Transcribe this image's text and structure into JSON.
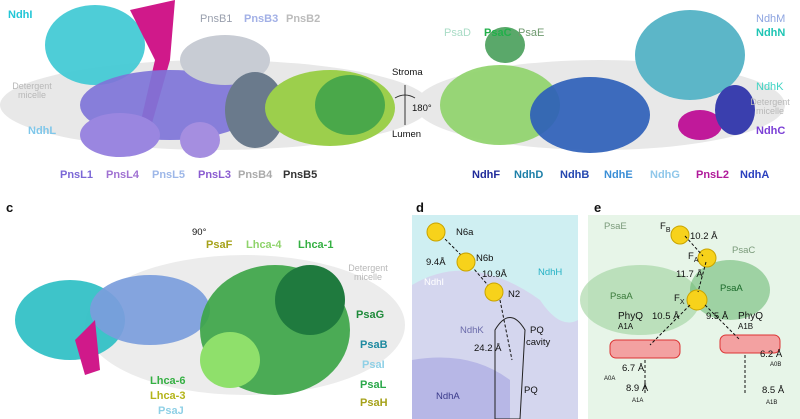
{
  "panel_top": {
    "labels_left": {
      "ndhi": "NdhI",
      "pnsb1": "PnsB1",
      "pnsb3": "PnsB3",
      "pnsb2": "PnsB2",
      "ndhl": "NdhL",
      "micelle": "Detergent micelle",
      "pnsl1": "PnsL1",
      "pnsl4": "PnsL4",
      "pnsl5": "PnsL5",
      "pnsl3": "PnsL3",
      "pnsb4": "PnsB4",
      "pnsb5": "PnsB5"
    },
    "rotation": {
      "stroma": "Stroma",
      "angle": "180°",
      "lumen": "Lumen"
    },
    "labels_right": {
      "psad": "PsaD",
      "psac": "PsaC",
      "psae": "PsaE",
      "ndhm": "NdhM",
      "ndhn": "NdhN",
      "ndhk": "NdhK",
      "micelle": "Detergent micelle",
      "ndhc": "NdhC",
      "ndhf": "NdhF",
      "ndhd": "NdhD",
      "ndhb": "NdhB",
      "ndhe": "NdhE",
      "ndhg": "NdhG",
      "pnsl2": "PnsL2",
      "ndha": "NdhA"
    }
  },
  "panel_c": {
    "letter": "c",
    "angle": "90°",
    "labels": {
      "psaf": "PsaF",
      "lhca4": "Lhca-4",
      "lhca1": "Lhca-1",
      "micelle": "Detergent micelle",
      "psag": "PsaG",
      "psab": "PsaB",
      "psai": "PsaI",
      "psal": "PsaL",
      "psah": "PsaH",
      "lhca6": "Lhca-6",
      "lhca3": "Lhca-3",
      "psaj": "PsaJ"
    }
  },
  "panel_d": {
    "letter": "d",
    "labels": {
      "n6a": "N6a",
      "n6b": "N6b",
      "n2": "N2",
      "d1": "9.4Å",
      "d2": "10.9Å",
      "d3": "24.2 Å",
      "ndhh": "NdhH",
      "ndhi": "NdhI",
      "ndhk": "NdhK",
      "ndha": "NdhA",
      "pq_cavity_1": "PQ",
      "pq_cavity_2": "cavity",
      "pq": "PQ"
    }
  },
  "panel_e": {
    "letter": "e",
    "labels": {
      "psae": "PsaE",
      "psac": "PsaC",
      "psaa1": "PsaA",
      "psaa2": "PsaA",
      "fb": "F",
      "fb_sub": "B",
      "fa": "F",
      "fa_sub": "A",
      "fx": "F",
      "fx_sub": "X",
      "d_fb_fa": "10.2 Å",
      "d_fa_fx": "11.7 Å",
      "d_left": "10.5 Å",
      "d_right": "9.5 Å",
      "phyq_left": "PhyQ",
      "phyq_left_sub": "A1A",
      "phyq_right": "PhyQ",
      "phyq_right_sub": "A1B",
      "d_left2": "6.7 Å",
      "d_right2": "6.2 Å",
      "d_left3": "8.9 Å",
      "d_right3": "8.5 Å",
      "a0a": "A0A",
      "a0b": "A0B",
      "a1a": "A1A",
      "a1b": "A1B"
    }
  },
  "colors": {
    "cyan": "#23c6d6",
    "magenta": "#d0198a",
    "purple": "#8a6fd6",
    "lilac": "#b89be6",
    "green": "#35b043",
    "lightgreen": "#8fd36b",
    "darkblue": "#1f2a9a",
    "navy": "#2447b0",
    "teal": "#1d7fa8",
    "gray": "#bbbbbb",
    "olive": "#a6a21a",
    "mint": "#b6e8c8"
  }
}
